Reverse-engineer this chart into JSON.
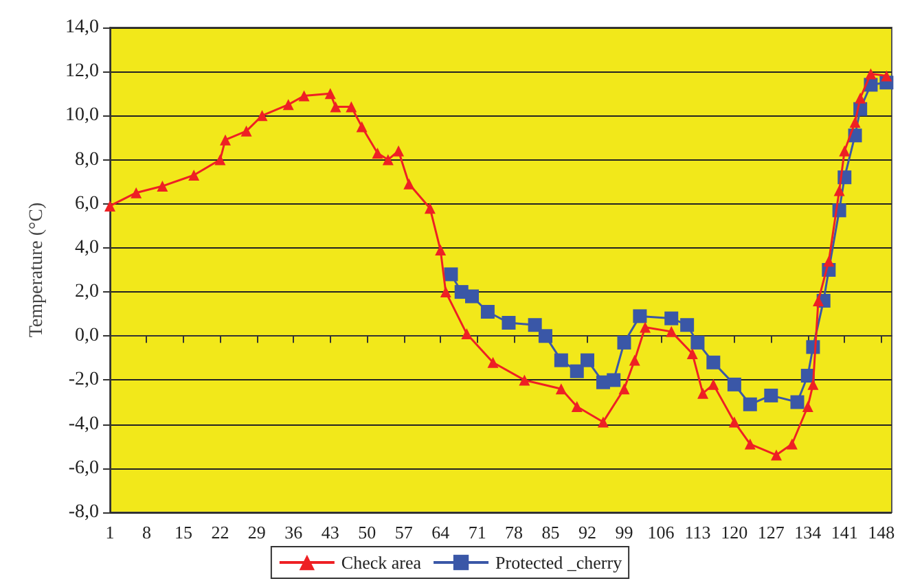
{
  "chart_data": {
    "type": "line",
    "ylabel": "Temperature (°C)",
    "xlim": [
      1,
      150
    ],
    "xticks": [
      1,
      8,
      15,
      22,
      29,
      36,
      43,
      50,
      57,
      64,
      71,
      78,
      85,
      92,
      99,
      106,
      113,
      120,
      127,
      134,
      141,
      148
    ],
    "ylim": [
      -8,
      14
    ],
    "yticks": [
      {
        "value": -8,
        "label": "-8,0"
      },
      {
        "value": -6,
        "label": "-6,0"
      },
      {
        "value": -4,
        "label": "-4,0"
      },
      {
        "value": -2,
        "label": "-2,0"
      },
      {
        "value": 0,
        "label": "0,0"
      },
      {
        "value": 2,
        "label": "2,0"
      },
      {
        "value": 4,
        "label": "4,0"
      },
      {
        "value": 6,
        "label": "6,0"
      },
      {
        "value": 8,
        "label": "8,0"
      },
      {
        "value": 10,
        "label": "10,0"
      },
      {
        "value": 12,
        "label": "12,0"
      },
      {
        "value": 14,
        "label": "14,0"
      }
    ],
    "grid": "y",
    "legend": "bottom",
    "line_style": "solid",
    "series": [
      {
        "name": "Check area",
        "color": "#ee2024",
        "marker": "triangle",
        "x": [
          1,
          6,
          11,
          17,
          22,
          23,
          27,
          30,
          35,
          38,
          43,
          44,
          47,
          49,
          52,
          54,
          56,
          58,
          62,
          64,
          65,
          69,
          74,
          80,
          87,
          90,
          95,
          99,
          101,
          103,
          108,
          112,
          114,
          116,
          120,
          123,
          128,
          131,
          134,
          135,
          136,
          138,
          140,
          141,
          143,
          144,
          146,
          149
        ],
        "values": [
          5.9,
          6.5,
          6.8,
          7.3,
          8.0,
          8.9,
          9.3,
          10.0,
          10.5,
          10.9,
          11.0,
          10.4,
          10.4,
          9.5,
          8.3,
          8.0,
          8.4,
          6.9,
          5.8,
          3.9,
          2.0,
          0.1,
          -1.2,
          -2.0,
          -2.4,
          -3.2,
          -3.9,
          -2.4,
          -1.1,
          0.4,
          0.2,
          -0.8,
          -2.6,
          -2.2,
          -3.9,
          -4.9,
          -5.4,
          -4.9,
          -3.2,
          -2.2,
          1.6,
          3.4,
          6.6,
          8.4,
          9.7,
          10.8,
          11.9,
          11.8
        ]
      },
      {
        "name": "Protected _cherry",
        "color": "#3a57a7",
        "marker": "square",
        "x": [
          66,
          68,
          70,
          73,
          77,
          82,
          84,
          87,
          90,
          92,
          95,
          97,
          99,
          102,
          108,
          111,
          113,
          116,
          120,
          123,
          127,
          132,
          134,
          135,
          137,
          138,
          140,
          141,
          143,
          144,
          146,
          149
        ],
        "values": [
          2.8,
          2.0,
          1.8,
          1.1,
          0.6,
          0.5,
          0.0,
          -1.1,
          -1.6,
          -1.1,
          -2.1,
          -2.0,
          -0.3,
          0.9,
          0.8,
          0.5,
          -0.3,
          -1.2,
          -2.2,
          -3.1,
          -2.7,
          -3.0,
          -1.8,
          -0.5,
          1.6,
          3.0,
          5.7,
          7.2,
          9.1,
          10.3,
          11.4,
          11.5
        ]
      }
    ]
  }
}
